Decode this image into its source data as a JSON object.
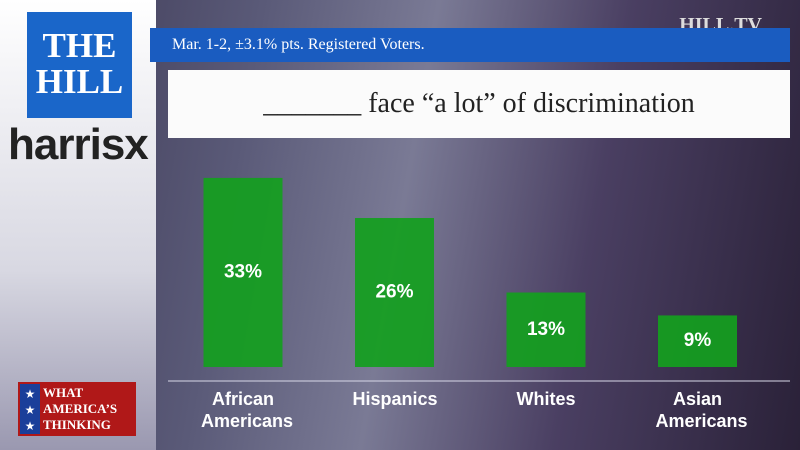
{
  "chart_data": {
    "type": "bar",
    "title": "_______ face “a lot” of discrimination",
    "subtitle": "Mar. 1-2, ±3.1% pts. Registered Voters.",
    "categories": [
      "African Americans",
      "Hispanics",
      "Whites",
      "Asian Americans"
    ],
    "values": [
      33,
      26,
      13,
      9
    ],
    "value_labels": [
      "33%",
      "26%",
      "13%",
      "9%"
    ],
    "color": "#14a01e"
  },
  "branding": {
    "the_hill": [
      "THE",
      "HILL"
    ],
    "partner": "harrisx",
    "network": "HILL.TV",
    "show": [
      "WHAT",
      "AMERICA’S",
      "THINKING"
    ]
  }
}
